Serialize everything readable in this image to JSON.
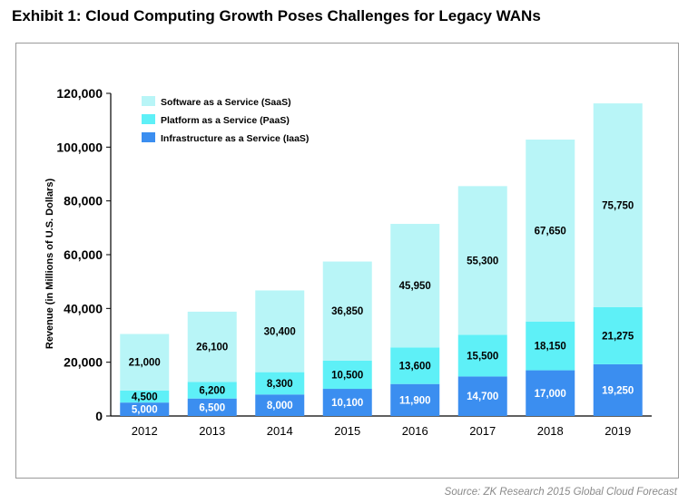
{
  "page": {
    "title": "Exhibit 1: Cloud Computing Growth Poses Challenges for Legacy WANs",
    "source": "Source: ZK Research 2015 Global Cloud Forecast"
  },
  "chart_data": {
    "type": "bar",
    "stacked": true,
    "categories": [
      "2012",
      "2013",
      "2014",
      "2015",
      "2016",
      "2017",
      "2018",
      "2019"
    ],
    "series": [
      {
        "name": "Infrastructure as a Service (IaaS)",
        "color": "#3b8ef0",
        "values": [
          5000,
          6500,
          8000,
          10100,
          11900,
          14700,
          17000,
          19250
        ],
        "labels": [
          "5,000",
          "6,500",
          "8,000",
          "10,100",
          "11,900",
          "14,700",
          "17,000",
          "19,250"
        ]
      },
      {
        "name": "Platform as a Service (PaaS)",
        "color": "#5ef0f7",
        "values": [
          4500,
          6200,
          8300,
          10500,
          13600,
          15500,
          18150,
          21275
        ],
        "labels": [
          "4,500",
          "6,200",
          "8,300",
          "10,500",
          "13,600",
          "15,500",
          "18,150",
          "21,275"
        ]
      },
      {
        "name": "Software as a Service (SaaS)",
        "color": "#b8f5f7",
        "values": [
          21000,
          26100,
          30400,
          36850,
          45950,
          55300,
          67650,
          75750
        ],
        "labels": [
          "21,000",
          "26,100",
          "30,400",
          "36,850",
          "45,950",
          "55,300",
          "67,650",
          "75,750"
        ]
      }
    ],
    "legend_order": [
      2,
      1,
      0
    ],
    "legend_position": "top-left",
    "ylabel": "Revenue (in Millions of U.S. Dollars)",
    "xlabel": "",
    "ylim": [
      0,
      120000
    ],
    "yticks": [
      0,
      20000,
      40000,
      60000,
      80000,
      100000,
      120000
    ],
    "ytick_labels": [
      "0",
      "20,000",
      "40,000",
      "60,000",
      "80,000",
      "100,000",
      "120,000"
    ],
    "grid": false
  }
}
